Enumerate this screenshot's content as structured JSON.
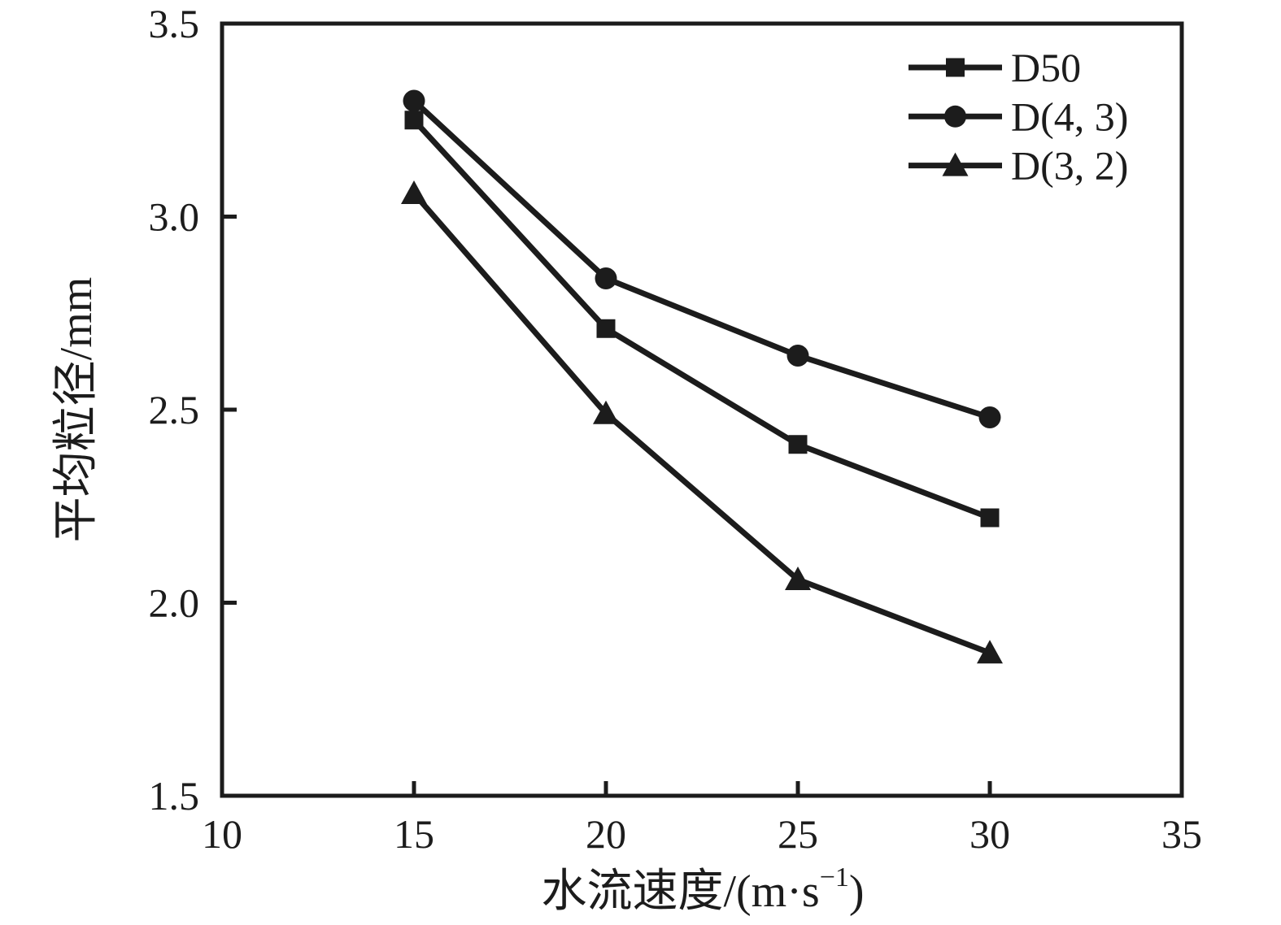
{
  "figure": {
    "background": "#ffffff",
    "ink_color": "#1c1c1c"
  },
  "chart_data": {
    "type": "line",
    "x": [
      15,
      20,
      25,
      30
    ],
    "series": [
      {
        "name": "D50",
        "marker": "square",
        "values": [
          3.25,
          2.71,
          2.41,
          2.22
        ]
      },
      {
        "name": "D(4, 3)",
        "marker": "circle",
        "values": [
          3.3,
          2.84,
          2.64,
          2.48
        ]
      },
      {
        "name": "D(3, 2)",
        "marker": "triangle",
        "values": [
          3.06,
          2.49,
          2.06,
          1.87
        ]
      }
    ],
    "xlabel_prefix": "水流速度/(m·s",
    "xlabel_sup": "−1",
    "xlabel_suffix": ")",
    "ylabel": "平均粒径/mm",
    "xlim": [
      10,
      35
    ],
    "ylim": [
      1.5,
      3.5
    ],
    "xticks": [
      10,
      15,
      20,
      25,
      30,
      35
    ],
    "xtick_labels": [
      "10",
      "15",
      "20",
      "25",
      "30",
      "35"
    ],
    "yticks": [
      1.5,
      2.0,
      2.5,
      3.0,
      3.5
    ],
    "ytick_labels": [
      "1.5",
      "2.0",
      "2.5",
      "3.0",
      "3.5"
    ],
    "grid": false,
    "legend_position": "top-right"
  }
}
